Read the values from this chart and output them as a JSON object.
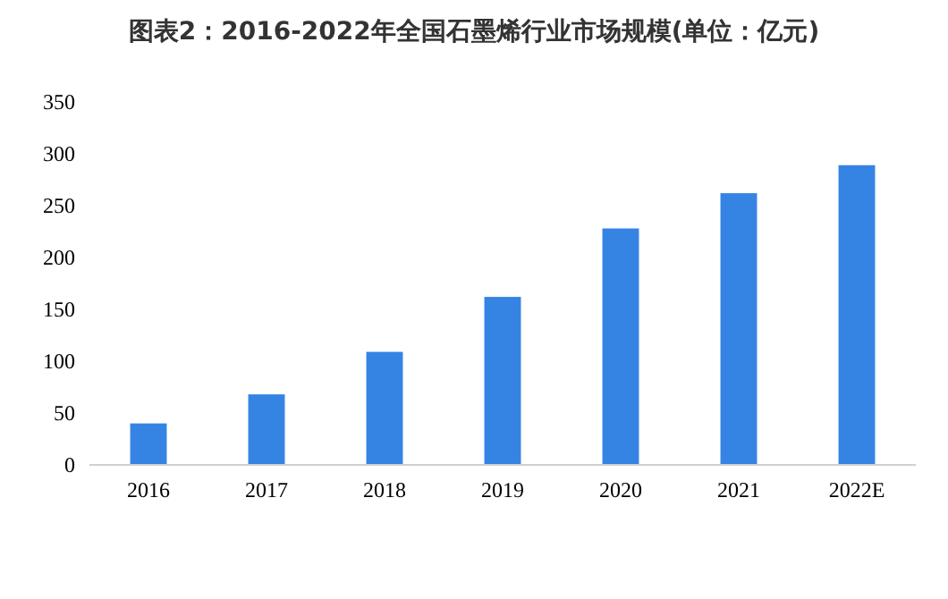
{
  "chart_data": {
    "type": "bar",
    "title": "图表2：2016-2022年全国石墨烯行业市场规模(单位：亿元)",
    "categories": [
      "2016",
      "2017",
      "2018",
      "2019",
      "2020",
      "2021",
      "2022E"
    ],
    "values": [
      40,
      68,
      109,
      162,
      228,
      262,
      289
    ],
    "color": "#3584e4",
    "ylim": [
      0,
      350
    ],
    "yticks": [
      0,
      50,
      100,
      150,
      200,
      250,
      300,
      350
    ],
    "grid": false
  }
}
